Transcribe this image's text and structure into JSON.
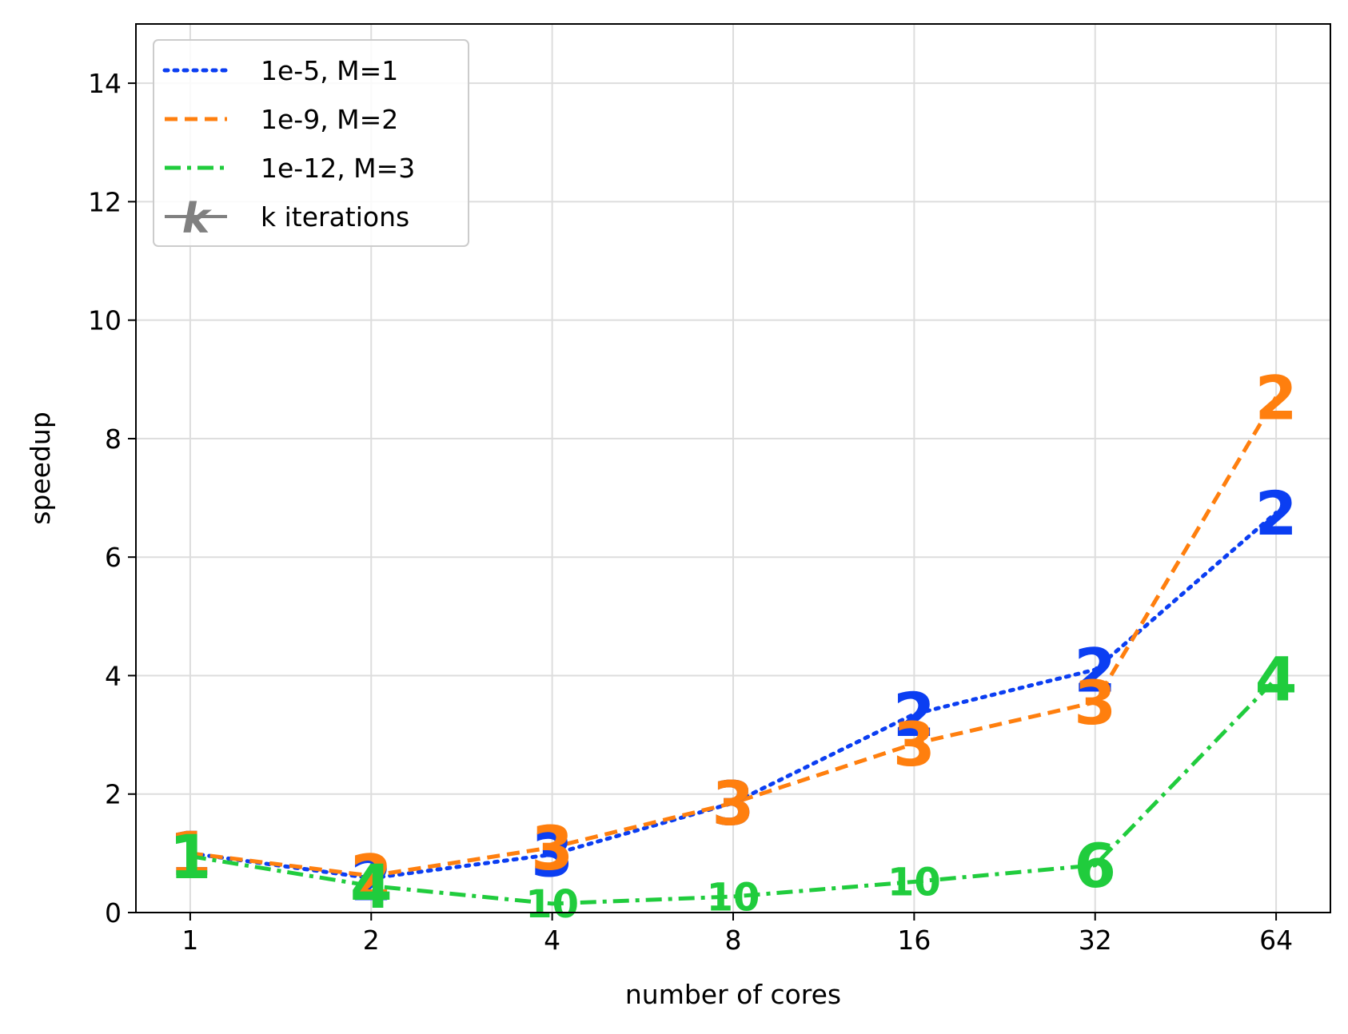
{
  "chart_data": {
    "type": "line",
    "xlabel": "number of cores",
    "ylabel": "speedup",
    "x": [
      1,
      2,
      4,
      8,
      16,
      32,
      64
    ],
    "x_tick_labels": [
      "1",
      "2",
      "4",
      "8",
      "16",
      "32",
      "64"
    ],
    "x_scale": "log2",
    "ylim": [
      0,
      15
    ],
    "y_ticks": [
      0,
      2,
      4,
      6,
      8,
      10,
      12,
      14
    ],
    "y_tick_labels": [
      "0",
      "2",
      "4",
      "6",
      "8",
      "10",
      "12",
      "14"
    ],
    "grid": true,
    "legend_position": "top-left",
    "series": [
      {
        "name": "1e-5, M=1",
        "color": "#0b3ef2",
        "line_style": "dotted",
        "values": [
          1.0,
          0.58,
          0.98,
          1.85,
          3.35,
          4.1,
          6.75
        ],
        "iteration_labels": [
          "1",
          "2",
          "3",
          "3",
          "2",
          "2",
          "2"
        ]
      },
      {
        "name": "1e-9, M=2",
        "color": "#ff7f0e",
        "line_style": "dashed",
        "values": [
          1.0,
          0.62,
          1.1,
          1.85,
          2.85,
          3.55,
          8.7
        ],
        "iteration_labels": [
          "1",
          "2",
          "3",
          "3",
          "3",
          "3",
          "2"
        ]
      },
      {
        "name": "1e-12, M=3",
        "color": "#20cc3d",
        "line_style": "dashdot",
        "values": [
          0.95,
          0.45,
          0.15,
          0.27,
          0.52,
          0.8,
          3.95
        ],
        "iteration_labels": [
          "1",
          "4",
          "10",
          "10",
          "10",
          "6",
          "4"
        ]
      }
    ],
    "legend_extra": {
      "name": "k iterations",
      "color": "#808080",
      "marker": "k"
    }
  }
}
